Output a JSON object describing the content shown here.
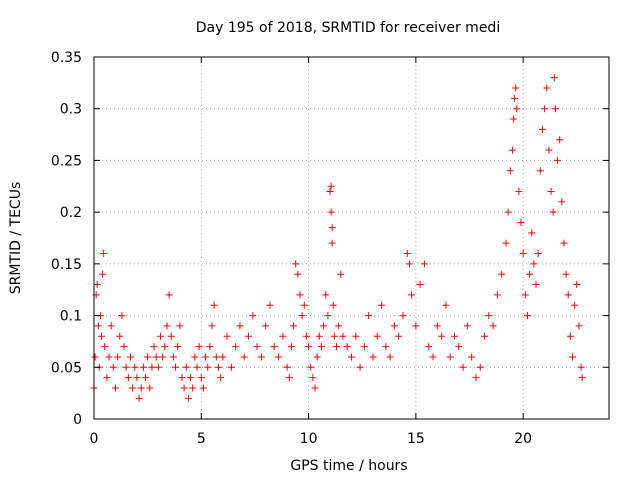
{
  "chart_data": {
    "type": "scatter",
    "title": "Day 195 of 2018, SRMTID for receiver medi",
    "xlabel": "GPS time / hours",
    "ylabel": "SRMTID / TECUs",
    "xlim": [
      0,
      24
    ],
    "ylim": [
      0,
      0.35
    ],
    "xticks": [
      0,
      5,
      10,
      15,
      20
    ],
    "xtick_labels": [
      "0",
      "5",
      "10",
      "15",
      "20"
    ],
    "yticks": [
      0,
      0.05,
      0.1,
      0.15,
      0.2,
      0.25,
      0.3,
      0.35
    ],
    "ytick_labels": [
      "0",
      "0.05",
      "0.1",
      "0.15",
      "0.2",
      "0.25",
      "0.3",
      "0.35"
    ],
    "grid": true,
    "marker": "+",
    "color": "#ff0000",
    "series": [
      {
        "name": "SRMTID",
        "points": [
          [
            0.0,
            0.03
          ],
          [
            0.05,
            0.06
          ],
          [
            0.1,
            0.12
          ],
          [
            0.15,
            0.13
          ],
          [
            0.2,
            0.09
          ],
          [
            0.25,
            0.05
          ],
          [
            0.3,
            0.1
          ],
          [
            0.35,
            0.08
          ],
          [
            0.4,
            0.14
          ],
          [
            0.45,
            0.16
          ],
          [
            0.5,
            0.07
          ],
          [
            0.6,
            0.04
          ],
          [
            0.7,
            0.06
          ],
          [
            0.8,
            0.09
          ],
          [
            0.9,
            0.05
          ],
          [
            1.0,
            0.03
          ],
          [
            1.1,
            0.06
          ],
          [
            1.2,
            0.08
          ],
          [
            1.3,
            0.1
          ],
          [
            1.4,
            0.07
          ],
          [
            1.5,
            0.05
          ],
          [
            1.6,
            0.04
          ],
          [
            1.7,
            0.06
          ],
          [
            1.8,
            0.03
          ],
          [
            1.9,
            0.05
          ],
          [
            2.0,
            0.04
          ],
          [
            2.1,
            0.02
          ],
          [
            2.2,
            0.03
          ],
          [
            2.3,
            0.05
          ],
          [
            2.4,
            0.04
          ],
          [
            2.5,
            0.06
          ],
          [
            2.6,
            0.03
          ],
          [
            2.7,
            0.05
          ],
          [
            2.8,
            0.07
          ],
          [
            2.9,
            0.06
          ],
          [
            3.0,
            0.05
          ],
          [
            3.1,
            0.08
          ],
          [
            3.2,
            0.06
          ],
          [
            3.3,
            0.07
          ],
          [
            3.4,
            0.09
          ],
          [
            3.5,
            0.12
          ],
          [
            3.6,
            0.08
          ],
          [
            3.7,
            0.06
          ],
          [
            3.8,
            0.05
          ],
          [
            3.9,
            0.07
          ],
          [
            4.0,
            0.09
          ],
          [
            4.1,
            0.04
          ],
          [
            4.2,
            0.03
          ],
          [
            4.3,
            0.05
          ],
          [
            4.4,
            0.02
          ],
          [
            4.5,
            0.04
          ],
          [
            4.6,
            0.03
          ],
          [
            4.7,
            0.06
          ],
          [
            4.8,
            0.05
          ],
          [
            4.9,
            0.07
          ],
          [
            5.0,
            0.04
          ],
          [
            5.1,
            0.03
          ],
          [
            5.2,
            0.06
          ],
          [
            5.3,
            0.05
          ],
          [
            5.4,
            0.07
          ],
          [
            5.5,
            0.09
          ],
          [
            5.6,
            0.11
          ],
          [
            5.7,
            0.06
          ],
          [
            5.8,
            0.05
          ],
          [
            5.9,
            0.04
          ],
          [
            6.0,
            0.06
          ],
          [
            6.2,
            0.08
          ],
          [
            6.4,
            0.05
          ],
          [
            6.6,
            0.07
          ],
          [
            6.8,
            0.09
          ],
          [
            7.0,
            0.06
          ],
          [
            7.2,
            0.08
          ],
          [
            7.4,
            0.1
          ],
          [
            7.6,
            0.07
          ],
          [
            7.8,
            0.06
          ],
          [
            8.0,
            0.09
          ],
          [
            8.2,
            0.11
          ],
          [
            8.4,
            0.07
          ],
          [
            8.6,
            0.06
          ],
          [
            8.8,
            0.08
          ],
          [
            9.0,
            0.05
          ],
          [
            9.1,
            0.04
          ],
          [
            9.2,
            0.07
          ],
          [
            9.3,
            0.09
          ],
          [
            9.4,
            0.15
          ],
          [
            9.5,
            0.14
          ],
          [
            9.6,
            0.12
          ],
          [
            9.7,
            0.1
          ],
          [
            9.8,
            0.11
          ],
          [
            9.9,
            0.08
          ],
          [
            10.0,
            0.07
          ],
          [
            10.1,
            0.05
          ],
          [
            10.2,
            0.04
          ],
          [
            10.3,
            0.03
          ],
          [
            10.4,
            0.06
          ],
          [
            10.5,
            0.08
          ],
          [
            10.6,
            0.07
          ],
          [
            10.7,
            0.09
          ],
          [
            10.8,
            0.12
          ],
          [
            10.9,
            0.1
          ],
          [
            11.0,
            0.22
          ],
          [
            11.05,
            0.225
          ],
          [
            11.05,
            0.2
          ],
          [
            11.1,
            0.185
          ],
          [
            11.1,
            0.17
          ],
          [
            11.15,
            0.11
          ],
          [
            11.2,
            0.08
          ],
          [
            11.3,
            0.07
          ],
          [
            11.4,
            0.09
          ],
          [
            11.5,
            0.14
          ],
          [
            11.6,
            0.08
          ],
          [
            11.8,
            0.07
          ],
          [
            12.0,
            0.06
          ],
          [
            12.2,
            0.08
          ],
          [
            12.4,
            0.05
          ],
          [
            12.6,
            0.07
          ],
          [
            12.8,
            0.1
          ],
          [
            13.0,
            0.06
          ],
          [
            13.2,
            0.08
          ],
          [
            13.4,
            0.11
          ],
          [
            13.6,
            0.07
          ],
          [
            13.8,
            0.06
          ],
          [
            14.0,
            0.09
          ],
          [
            14.2,
            0.08
          ],
          [
            14.4,
            0.1
          ],
          [
            14.6,
            0.16
          ],
          [
            14.7,
            0.15
          ],
          [
            14.8,
            0.12
          ],
          [
            15.0,
            0.09
          ],
          [
            15.2,
            0.13
          ],
          [
            15.4,
            0.15
          ],
          [
            15.6,
            0.07
          ],
          [
            15.8,
            0.06
          ],
          [
            16.0,
            0.09
          ],
          [
            16.2,
            0.08
          ],
          [
            16.4,
            0.11
          ],
          [
            16.6,
            0.06
          ],
          [
            16.8,
            0.08
          ],
          [
            17.0,
            0.07
          ],
          [
            17.2,
            0.05
          ],
          [
            17.4,
            0.09
          ],
          [
            17.6,
            0.06
          ],
          [
            17.8,
            0.04
          ],
          [
            18.0,
            0.05
          ],
          [
            18.2,
            0.08
          ],
          [
            18.4,
            0.1
          ],
          [
            18.6,
            0.09
          ],
          [
            18.8,
            0.12
          ],
          [
            19.0,
            0.14
          ],
          [
            19.2,
            0.17
          ],
          [
            19.3,
            0.2
          ],
          [
            19.4,
            0.24
          ],
          [
            19.5,
            0.26
          ],
          [
            19.55,
            0.29
          ],
          [
            19.6,
            0.31
          ],
          [
            19.65,
            0.32
          ],
          [
            19.7,
            0.3
          ],
          [
            19.8,
            0.22
          ],
          [
            19.9,
            0.19
          ],
          [
            20.0,
            0.16
          ],
          [
            20.1,
            0.12
          ],
          [
            20.2,
            0.1
          ],
          [
            20.3,
            0.14
          ],
          [
            20.4,
            0.18
          ],
          [
            20.5,
            0.15
          ],
          [
            20.6,
            0.13
          ],
          [
            20.7,
            0.16
          ],
          [
            20.8,
            0.24
          ],
          [
            20.9,
            0.28
          ],
          [
            21.0,
            0.3
          ],
          [
            21.1,
            0.32
          ],
          [
            21.2,
            0.26
          ],
          [
            21.3,
            0.22
          ],
          [
            21.4,
            0.2
          ],
          [
            21.45,
            0.33
          ],
          [
            21.5,
            0.3
          ],
          [
            21.6,
            0.25
          ],
          [
            21.7,
            0.27
          ],
          [
            21.8,
            0.21
          ],
          [
            21.9,
            0.17
          ],
          [
            22.0,
            0.14
          ],
          [
            22.1,
            0.12
          ],
          [
            22.2,
            0.08
          ],
          [
            22.3,
            0.06
          ],
          [
            22.4,
            0.11
          ],
          [
            22.5,
            0.13
          ],
          [
            22.6,
            0.09
          ],
          [
            22.7,
            0.05
          ],
          [
            22.75,
            0.04
          ]
        ]
      }
    ]
  }
}
